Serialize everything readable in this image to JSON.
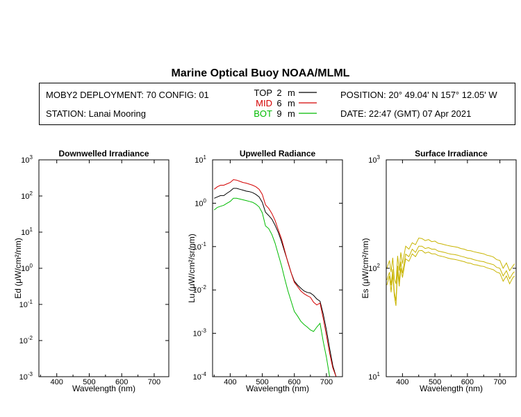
{
  "header": {
    "title": "Marine Optical Buoy NOAA/MLML",
    "deployment": "MOBY2 DEPLOYMENT: 70 CONFIG: 01",
    "station": "STATION: Lanai Mooring",
    "position": "POSITION: 20° 49.04' N   157° 12.05' W",
    "date": "DATE: 22:47 (GMT) 07 Apr 2021"
  },
  "legend": [
    {
      "label": "TOP",
      "depth": "2",
      "unit": "m",
      "color": "#000000"
    },
    {
      "label": "MID",
      "depth": "6",
      "unit": "m",
      "color": "#d40000"
    },
    {
      "label": "BOT",
      "depth": "9",
      "unit": "m",
      "color": "#00bb00"
    }
  ],
  "chart_data": [
    {
      "type": "line",
      "title": "Downwelled Irradiance",
      "xlabel": "Wavelength (nm)",
      "ylabel": "Ed (μW/cm²/nm)",
      "xlim": [
        345,
        745
      ],
      "ylim": [
        0.001,
        1000
      ],
      "yscale": "log",
      "xticks": [
        400,
        500,
        600,
        700
      ],
      "yticks": [
        {
          "base": "10",
          "exp": "3"
        },
        {
          "base": "10",
          "exp": "2"
        },
        {
          "base": "10",
          "exp": "1"
        },
        {
          "base": "10",
          "exp": "0"
        },
        {
          "base": "10",
          "exp": "-1"
        },
        {
          "base": "10",
          "exp": "-2"
        },
        {
          "base": "10",
          "exp": "-3"
        }
      ],
      "series": []
    },
    {
      "type": "line",
      "title": "Upwelled Radiance",
      "xlabel": "Wavelength (nm)",
      "ylabel": "Lu (μW/cm²/sr/nm)",
      "xlim": [
        345,
        750
      ],
      "ylim": [
        0.0001,
        10
      ],
      "yscale": "log",
      "xticks": [
        400,
        500,
        600,
        700
      ],
      "yticks": [
        {
          "base": "10",
          "exp": "1"
        },
        {
          "base": "10",
          "exp": "0"
        },
        {
          "base": "10",
          "exp": "-1"
        },
        {
          "base": "10",
          "exp": "-2"
        },
        {
          "base": "10",
          "exp": "-3"
        },
        {
          "base": "10",
          "exp": "-4"
        }
      ],
      "series": [
        {
          "name": "TOP",
          "color": "#000000",
          "x": [
            350,
            360,
            370,
            380,
            390,
            400,
            410,
            420,
            430,
            440,
            450,
            460,
            470,
            480,
            490,
            500,
            510,
            520,
            530,
            540,
            550,
            560,
            570,
            580,
            590,
            600,
            610,
            620,
            630,
            640,
            650,
            660,
            670,
            680,
            690,
            700,
            710,
            720,
            730,
            740
          ],
          "y": [
            1.3,
            1.4,
            1.5,
            1.5,
            1.7,
            1.9,
            2.2,
            2.2,
            2.1,
            2.0,
            1.9,
            1.85,
            1.75,
            1.6,
            1.4,
            1.05,
            0.62,
            0.52,
            0.43,
            0.31,
            0.21,
            0.13,
            0.075,
            0.044,
            0.025,
            0.016,
            0.013,
            0.011,
            0.0095,
            0.0088,
            0.0085,
            0.0075,
            0.0062,
            0.0055,
            0.0028,
            0.0012,
            0.00045,
            0.00018,
            0.0001,
            0.0001
          ]
        },
        {
          "name": "MID",
          "color": "#d40000",
          "x": [
            350,
            360,
            370,
            380,
            390,
            400,
            410,
            420,
            430,
            440,
            450,
            460,
            470,
            480,
            490,
            500,
            510,
            520,
            530,
            540,
            550,
            560,
            570,
            580,
            590,
            600,
            610,
            620,
            630,
            640,
            650,
            660,
            670,
            680,
            690,
            700,
            710,
            720,
            730,
            740
          ],
          "y": [
            2.1,
            2.4,
            2.6,
            2.6,
            2.8,
            3.0,
            3.5,
            3.4,
            3.2,
            3.0,
            2.9,
            2.75,
            2.6,
            2.4,
            2.1,
            1.6,
            0.92,
            0.76,
            0.58,
            0.4,
            0.24,
            0.15,
            0.08,
            0.043,
            0.025,
            0.015,
            0.012,
            0.0095,
            0.0082,
            0.0074,
            0.0068,
            0.0052,
            0.0045,
            0.005,
            0.0022,
            0.0009,
            0.00035,
            0.00016,
            0.0001,
            0.0001
          ]
        },
        {
          "name": "BOT",
          "color": "#00bb00",
          "x": [
            350,
            360,
            370,
            380,
            390,
            400,
            410,
            420,
            430,
            440,
            450,
            460,
            470,
            480,
            490,
            500,
            510,
            520,
            530,
            540,
            550,
            560,
            570,
            580,
            590,
            600,
            610,
            620,
            630,
            640,
            650,
            660,
            670,
            680,
            690,
            700,
            710,
            720,
            730,
            740
          ],
          "y": [
            0.7,
            0.8,
            0.85,
            0.9,
            1.0,
            1.1,
            1.3,
            1.3,
            1.25,
            1.2,
            1.15,
            1.1,
            1.05,
            0.95,
            0.82,
            0.6,
            0.3,
            0.26,
            0.19,
            0.12,
            0.065,
            0.036,
            0.018,
            0.0095,
            0.0055,
            0.0032,
            0.0025,
            0.0019,
            0.0016,
            0.0014,
            0.0012,
            0.0011,
            0.0014,
            0.0017,
            0.00065,
            0.00028,
            0.0001,
            0.0001,
            0.0001,
            0.0001
          ]
        }
      ]
    },
    {
      "type": "line",
      "title": "Surface Irradiance",
      "xlabel": "Wavelength (nm)",
      "ylabel": "Es (μW/cm²/nm)",
      "xlim": [
        350,
        750
      ],
      "ylim": [
        10,
        1000
      ],
      "yscale": "log",
      "xticks": [
        400,
        500,
        600,
        700
      ],
      "yticks": [
        {
          "base": "10",
          "exp": "3"
        },
        {
          "base": "10",
          "exp": "2"
        },
        {
          "base": "10",
          "exp": "1"
        }
      ],
      "series": [
        {
          "name": "",
          "color": "#c8b400",
          "x": [
            352,
            360,
            365,
            370,
            375,
            380,
            385,
            390,
            395,
            400,
            410,
            420,
            430,
            440,
            450,
            460,
            470,
            480,
            490,
            500,
            510,
            520,
            530,
            540,
            550,
            560,
            570,
            580,
            590,
            600,
            610,
            620,
            630,
            640,
            650,
            660,
            670,
            680,
            690,
            700,
            710,
            720,
            730,
            740,
            745
          ],
          "y": [
            100,
            118,
            92,
            125,
            80,
            72,
            130,
            95,
            140,
            110,
            160,
            150,
            172,
            165,
            190,
            188,
            180,
            184,
            176,
            178,
            170,
            168,
            165,
            162,
            160,
            158,
            156,
            152,
            150,
            146,
            145,
            142,
            140,
            138,
            136,
            132,
            130,
            127,
            120,
            118,
            100,
            112,
            95,
            105,
            110
          ]
        },
        {
          "name": "",
          "color": "#c8b400",
          "x": [
            352,
            360,
            365,
            370,
            375,
            380,
            385,
            390,
            395,
            400,
            410,
            420,
            430,
            440,
            450,
            460,
            470,
            480,
            490,
            500,
            510,
            520,
            530,
            540,
            550,
            560,
            570,
            580,
            590,
            600,
            610,
            620,
            630,
            640,
            650,
            660,
            670,
            680,
            690,
            700,
            710,
            720,
            730,
            740,
            745
          ],
          "y": [
            78,
            92,
            70,
            98,
            60,
            50,
            105,
            75,
            115,
            90,
            135,
            128,
            150,
            140,
            160,
            160,
            152,
            155,
            150,
            150,
            144,
            142,
            140,
            137,
            135,
            134,
            132,
            129,
            127,
            124,
            123,
            120,
            118,
            116,
            115,
            112,
            110,
            108,
            102,
            100,
            85,
            95,
            80,
            90,
            93
          ]
        },
        {
          "name": "",
          "color": "#c8b400",
          "x": [
            352,
            360,
            365,
            370,
            375,
            380,
            385,
            390,
            395,
            400,
            410,
            420,
            430,
            440,
            450,
            460,
            470,
            480,
            490,
            500,
            510,
            520,
            530,
            540,
            550,
            560,
            570,
            580,
            590,
            600,
            610,
            620,
            630,
            640,
            650,
            660,
            670,
            680,
            690,
            700,
            710,
            720,
            730,
            740,
            745
          ],
          "y": [
            70,
            85,
            60,
            88,
            55,
            45,
            95,
            68,
            100,
            82,
            122,
            116,
            136,
            128,
            145,
            146,
            138,
            141,
            136,
            136,
            131,
            129,
            127,
            124,
            122,
            121,
            119,
            117,
            115,
            112,
            111,
            108,
            107,
            105,
            104,
            101,
            99,
            97,
            92,
            90,
            76,
            85,
            72,
            82,
            85
          ]
        }
      ]
    }
  ]
}
